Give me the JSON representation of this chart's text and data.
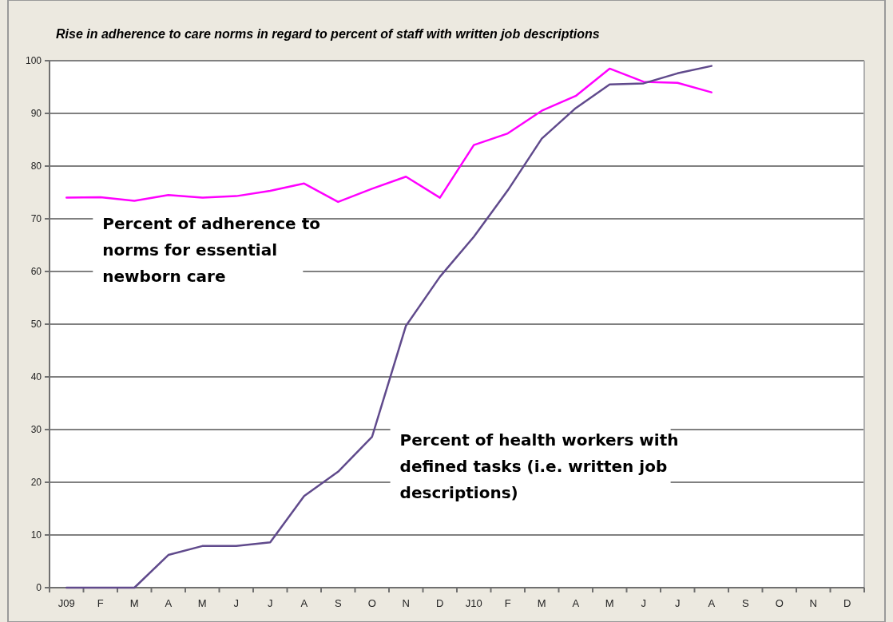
{
  "chart_data": {
    "type": "line",
    "title": "Rise in adherence to care norms in regard to percent of staff with written job descriptions",
    "categories": [
      "J09",
      "F",
      "M",
      "A",
      "M",
      "J",
      "J",
      "A",
      "S",
      "O",
      "N",
      "D",
      "J10",
      "F",
      "M",
      "A",
      "M",
      "J",
      "J",
      "A",
      "S",
      "O",
      "N",
      "D"
    ],
    "series": [
      {
        "name": "Percent of adherence to norms for essential newborn care",
        "color": "#ff00ff",
        "values": [
          74,
          74.1,
          73.4,
          74.5,
          74,
          74.3,
          75.3,
          76.7,
          73.2,
          75.7,
          78,
          74,
          84,
          86.2,
          90.5,
          93.3,
          98.5,
          96,
          95.8,
          94,
          null,
          null,
          null,
          null
        ]
      },
      {
        "name": "Percent of health workers with defined tasks (i.e. written job descriptions)",
        "color": "#604a8c",
        "values": [
          0,
          0,
          0,
          6.2,
          7.9,
          7.9,
          8.6,
          17.4,
          22,
          28.6,
          49.7,
          59,
          66.6,
          75.4,
          85.2,
          91,
          95.5,
          95.7,
          97.6,
          99,
          null,
          null,
          null,
          null
        ]
      }
    ],
    "ylim": [
      0,
      100
    ],
    "yticks": [
      0,
      10,
      20,
      30,
      40,
      50,
      60,
      70,
      80,
      90,
      100
    ],
    "grid": "y",
    "marker": "none",
    "line_style": "solid"
  }
}
